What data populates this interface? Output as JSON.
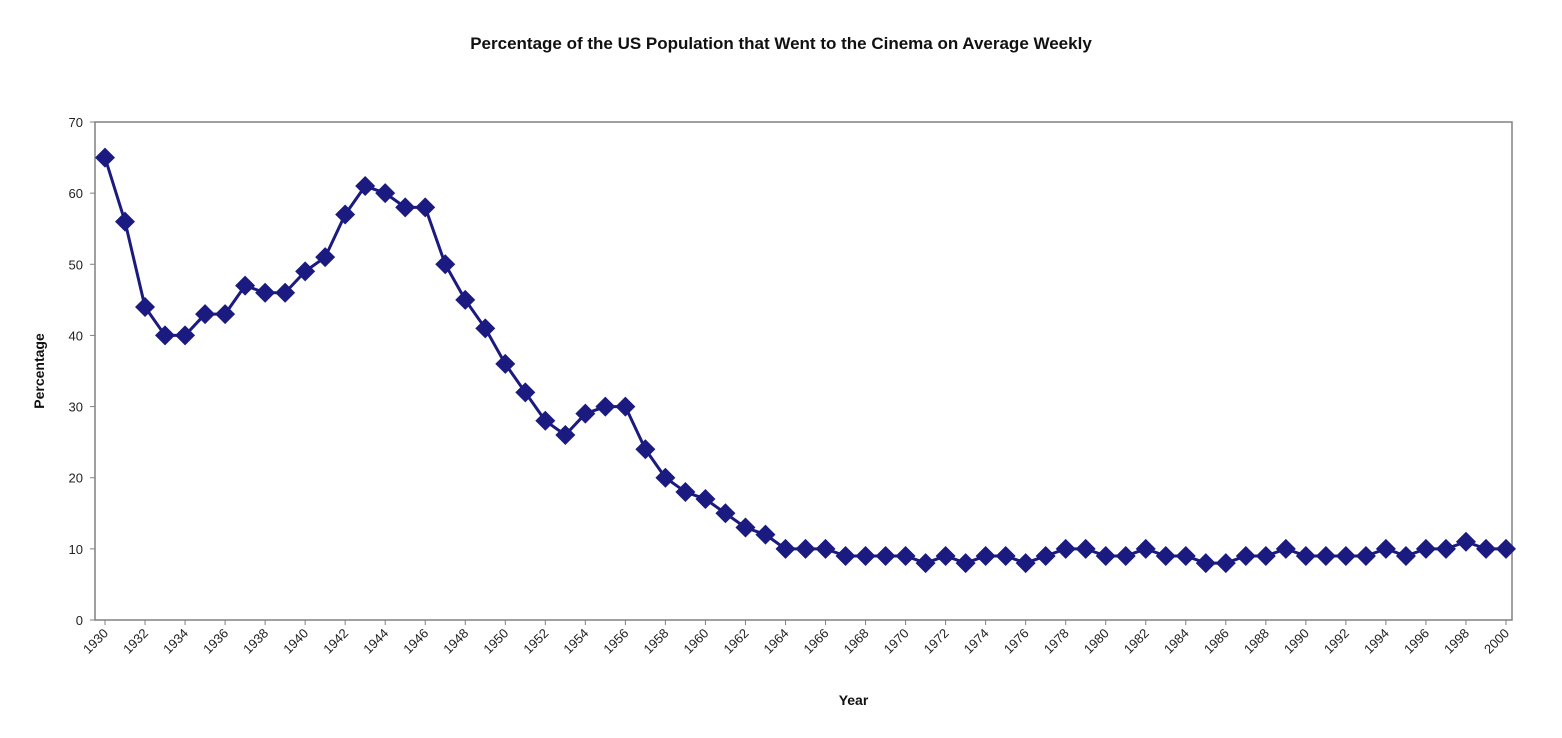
{
  "chart_data": {
    "type": "line",
    "title": "Percentage of the US Population that Went to the Cinema on Average Weekly",
    "xlabel": "Year",
    "ylabel": "Percentage",
    "ylim": [
      0,
      70
    ],
    "yticks": [
      0,
      10,
      20,
      30,
      40,
      50,
      60,
      70
    ],
    "xlim": [
      1930,
      2000
    ],
    "xticks": [
      "1930",
      "1932",
      "1934",
      "1936",
      "1938",
      "1940",
      "1942",
      "1944",
      "1946",
      "1948",
      "1950",
      "1952",
      "1954",
      "1956",
      "1958",
      "1960",
      "1962",
      "1964",
      "1966",
      "1968",
      "1970",
      "1972",
      "1974",
      "1976",
      "1978",
      "1980",
      "1982",
      "1984",
      "1986",
      "1988",
      "1990",
      "1992",
      "1994",
      "1996",
      "1998",
      "2000"
    ],
    "grid": false,
    "legend": "none",
    "series": [
      {
        "color": "#1a1a80",
        "marker": "diamond",
        "x": [
          1930,
          1931,
          1932,
          1933,
          1934,
          1935,
          1936,
          1937,
          1938,
          1939,
          1940,
          1941,
          1942,
          1943,
          1944,
          1945,
          1946,
          1947,
          1948,
          1949,
          1950,
          1951,
          1952,
          1953,
          1954,
          1955,
          1956,
          1957,
          1958,
          1959,
          1960,
          1961,
          1962,
          1963,
          1964,
          1965,
          1966,
          1967,
          1968,
          1969,
          1970,
          1971,
          1972,
          1973,
          1974,
          1975,
          1976,
          1977,
          1978,
          1979,
          1980,
          1981,
          1982,
          1983,
          1984,
          1985,
          1986,
          1987,
          1988,
          1989,
          1990,
          1991,
          1992,
          1993,
          1994,
          1995,
          1996,
          1997,
          1998,
          1999,
          2000
        ],
        "values": [
          65,
          56,
          44,
          40,
          40,
          43,
          43,
          47,
          46,
          46,
          49,
          51,
          57,
          61,
          60,
          58,
          58,
          50,
          45,
          41,
          36,
          32,
          28,
          26,
          29,
          30,
          30,
          24,
          20,
          18,
          17,
          15,
          13,
          12,
          10,
          10,
          10,
          9,
          9,
          9,
          9,
          8,
          9,
          8,
          9,
          9,
          8,
          9,
          10,
          10,
          9,
          9,
          10,
          9,
          9,
          8,
          8,
          9,
          9,
          10,
          9,
          9,
          9,
          9,
          10,
          9,
          10,
          10,
          11,
          10,
          10
        ]
      }
    ]
  }
}
